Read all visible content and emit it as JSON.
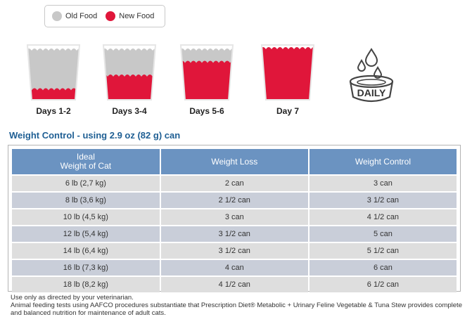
{
  "legend": {
    "items": [
      {
        "label": "Old Food",
        "color": "#c8c8c8"
      },
      {
        "label": "New Food",
        "color": "#e0163a"
      }
    ]
  },
  "transition": [
    {
      "label": "Days 1-2",
      "new_food_fraction": 0.25
    },
    {
      "label": "Days 3-4",
      "new_food_fraction": 0.5
    },
    {
      "label": "Days 5-6",
      "new_food_fraction": 0.75
    },
    {
      "label": "Day 7",
      "new_food_fraction": 1.0
    }
  ],
  "daily_icon": {
    "name": "daily-bowl-icon",
    "text": "DAILY"
  },
  "title": "Weight Control - using 2.9 oz (82 g) can",
  "table": {
    "headers": [
      "Ideal\nWeight of Cat",
      "Weight Loss",
      "Weight Control"
    ],
    "rows": [
      [
        "6 lb (2,7 kg)",
        "2 can",
        "3 can"
      ],
      [
        "8 lb (3,6 kg)",
        "2 1/2 can",
        "3 1/2 can"
      ],
      [
        "10 lb (4,5 kg)",
        "3 can",
        "4 1/2 can"
      ],
      [
        "12 lb (5,4 kg)",
        "3 1/2 can",
        "5 can"
      ],
      [
        "14 lb (6,4 kg)",
        "3 1/2 can",
        "5 1/2 can"
      ],
      [
        "16 lb (7,3 kg)",
        "4 can",
        "6 can"
      ],
      [
        "18 lb (8,2 kg)",
        "4 1/2 can",
        "6 1/2 can"
      ]
    ]
  },
  "notes": [
    "Use only as directed by your veterinarian.",
    "Animal feeding tests using AAFCO procedures substantiate that Prescription Diet® Metabolic + Urinary Feline Vegetable & Tuna Stew provides complete and balanced nutrition for maintenance of adult cats."
  ],
  "colors": {
    "old_food": "#c8c8c8",
    "new_food": "#e0163a",
    "header_bg": "#6b93c1",
    "title": "#1f5f94"
  }
}
